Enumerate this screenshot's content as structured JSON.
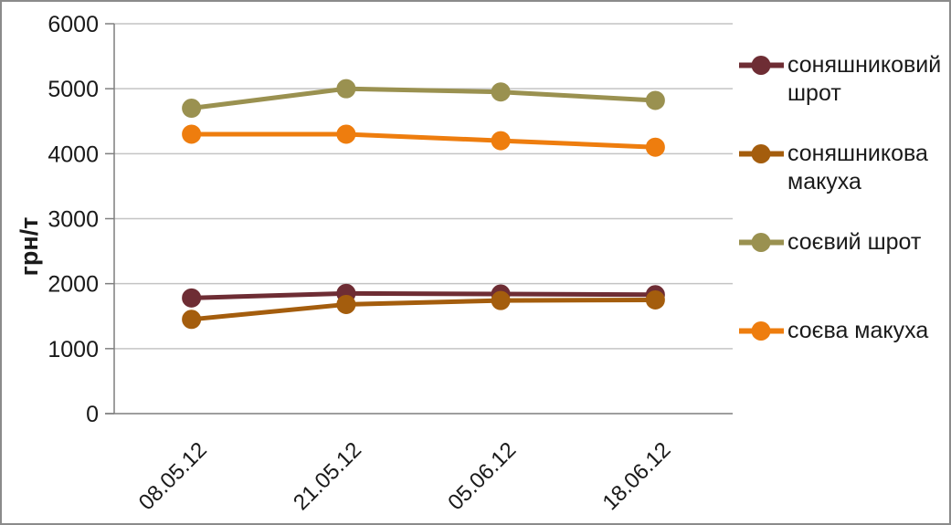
{
  "chart_data": {
    "type": "line",
    "title": "",
    "xlabel": "",
    "ylabel": "грн/т",
    "ylim": [
      0,
      6000
    ],
    "ytick_step": 1000,
    "yticks": [
      0,
      1000,
      2000,
      3000,
      4000,
      5000,
      6000
    ],
    "grid": true,
    "legend_position": "right",
    "categories": [
      "08.05.12",
      "21.05.12",
      "05.06.12",
      "18.06.12"
    ],
    "series": [
      {
        "name": "соняшниковий шрот",
        "color": "#6E2D34",
        "values": [
          1780,
          1850,
          1840,
          1830
        ]
      },
      {
        "name": "соняшникова макуха",
        "color": "#A45D0D",
        "values": [
          1450,
          1680,
          1740,
          1750
        ]
      },
      {
        "name": "соєвий шрот",
        "color": "#9A9150",
        "values": [
          4700,
          5000,
          4950,
          4820
        ]
      },
      {
        "name": "соєва макуха",
        "color": "#EE7D0E",
        "values": [
          4300,
          4300,
          4200,
          4100
        ]
      }
    ]
  },
  "colors": {
    "frame_border": "#8B8B8B",
    "background": "#FFFFFF",
    "gridline": "#C4C4C4",
    "axis": "#7F7F7F",
    "text": "#1A1A1A"
  }
}
